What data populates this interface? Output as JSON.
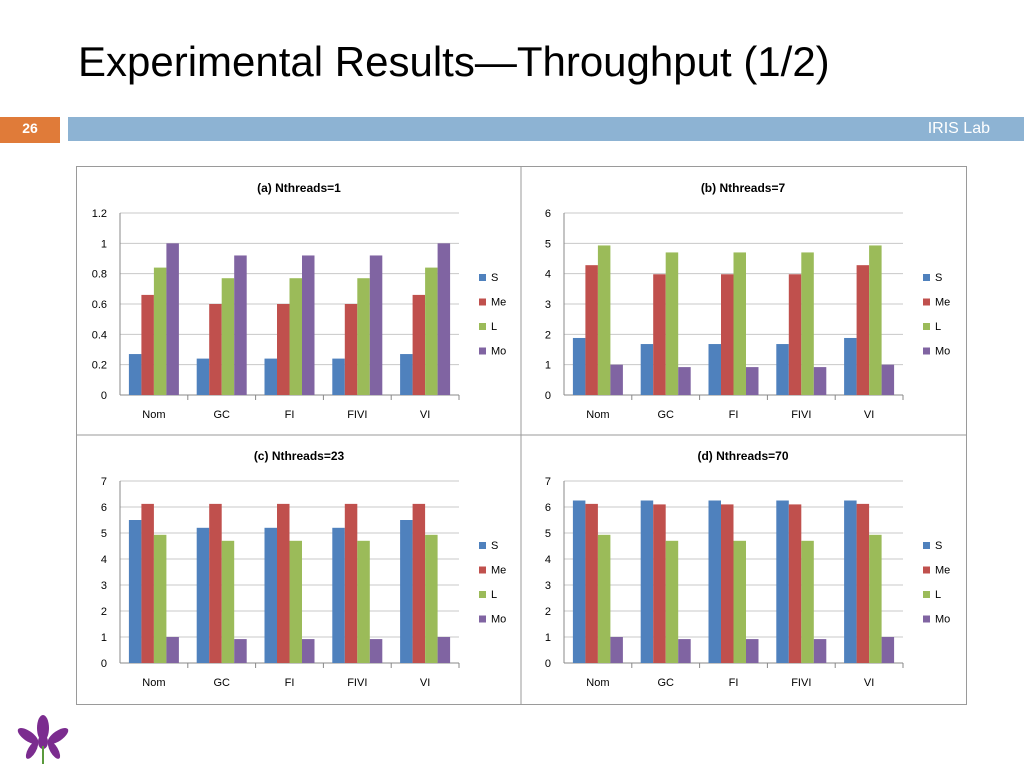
{
  "slide": {
    "title": "Experimental Results—Throughput (1/2)",
    "page_number": "26",
    "lab": "IRIS Lab"
  },
  "colors": {
    "accent_orange": "#e07b39",
    "band_blue": "#8db3d3",
    "S": "#4f81bd",
    "Me": "#c0504d",
    "L": "#9bbb59",
    "Mo": "#8064a2"
  },
  "chart_data": [
    {
      "type": "bar",
      "title": "(a) Nthreads=1",
      "categories": [
        "Nom",
        "GC",
        "FI",
        "FIVI",
        "VI"
      ],
      "ylim": [
        0,
        1.2
      ],
      "yticks": [
        "0",
        "0.2",
        "0.4",
        "0.6",
        "0.8",
        "1",
        "1.2"
      ],
      "grid": true,
      "legend": "right",
      "series": [
        {
          "name": "S",
          "values": [
            0.27,
            0.24,
            0.24,
            0.24,
            0.27
          ]
        },
        {
          "name": "Me",
          "values": [
            0.66,
            0.6,
            0.6,
            0.6,
            0.66
          ]
        },
        {
          "name": "L",
          "values": [
            0.84,
            0.77,
            0.77,
            0.77,
            0.84
          ]
        },
        {
          "name": "Mo",
          "values": [
            1.0,
            0.92,
            0.92,
            0.92,
            1.0
          ]
        }
      ]
    },
    {
      "type": "bar",
      "title": "(b) Nthreads=7",
      "categories": [
        "Nom",
        "GC",
        "FI",
        "FIVI",
        "VI"
      ],
      "ylim": [
        0,
        6
      ],
      "yticks": [
        "0",
        "1",
        "2",
        "3",
        "4",
        "5",
        "6"
      ],
      "grid": true,
      "legend": "right",
      "series": [
        {
          "name": "S",
          "values": [
            1.88,
            1.68,
            1.68,
            1.68,
            1.88
          ]
        },
        {
          "name": "Me",
          "values": [
            4.28,
            3.98,
            3.98,
            3.98,
            4.28
          ]
        },
        {
          "name": "L",
          "values": [
            4.93,
            4.7,
            4.7,
            4.7,
            4.93
          ]
        },
        {
          "name": "Mo",
          "values": [
            1.0,
            0.92,
            0.92,
            0.92,
            1.0
          ]
        }
      ]
    },
    {
      "type": "bar",
      "title": "(c) Nthreads=23",
      "categories": [
        "Nom",
        "GC",
        "FI",
        "FIVI",
        "VI"
      ],
      "ylim": [
        0,
        7
      ],
      "yticks": [
        "0",
        "1",
        "2",
        "3",
        "4",
        "5",
        "6",
        "7"
      ],
      "grid": true,
      "legend": "right",
      "series": [
        {
          "name": "S",
          "values": [
            5.5,
            5.2,
            5.2,
            5.2,
            5.5
          ]
        },
        {
          "name": "Me",
          "values": [
            6.12,
            6.12,
            6.12,
            6.12,
            6.12
          ]
        },
        {
          "name": "L",
          "values": [
            4.93,
            4.7,
            4.7,
            4.7,
            4.93
          ]
        },
        {
          "name": "Mo",
          "values": [
            1.0,
            0.92,
            0.92,
            0.92,
            1.0
          ]
        }
      ]
    },
    {
      "type": "bar",
      "title": "(d) Nthreads=70",
      "categories": [
        "Nom",
        "GC",
        "FI",
        "FIVI",
        "VI"
      ],
      "ylim": [
        0,
        7
      ],
      "yticks": [
        "0",
        "1",
        "2",
        "3",
        "4",
        "5",
        "6",
        "7"
      ],
      "grid": true,
      "legend": "right",
      "series": [
        {
          "name": "S",
          "values": [
            6.25,
            6.25,
            6.25,
            6.25,
            6.25
          ]
        },
        {
          "name": "Me",
          "values": [
            6.12,
            6.1,
            6.1,
            6.1,
            6.12
          ]
        },
        {
          "name": "L",
          "values": [
            4.93,
            4.7,
            4.7,
            4.7,
            4.93
          ]
        },
        {
          "name": "Mo",
          "values": [
            1.0,
            0.92,
            0.92,
            0.92,
            1.0
          ]
        }
      ]
    }
  ]
}
